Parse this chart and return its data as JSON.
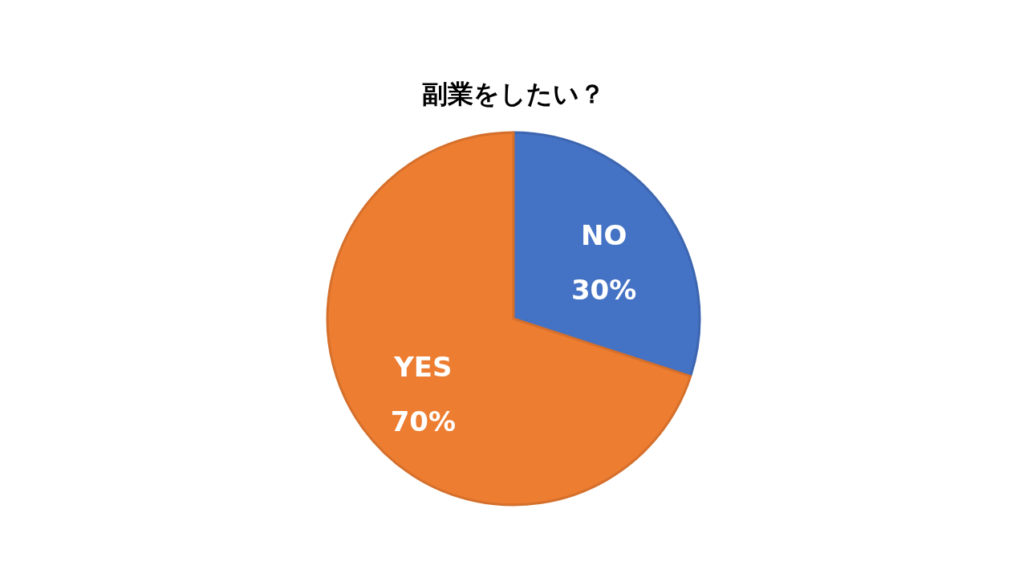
{
  "chart_data": {
    "type": "pie",
    "title": "副業をしたい？",
    "categories": [
      "NO",
      "YES"
    ],
    "values": [
      30,
      70
    ],
    "colors": [
      "#4472c4",
      "#ed7d31"
    ],
    "value_labels": [
      "30%",
      "70%"
    ],
    "legend": false
  }
}
